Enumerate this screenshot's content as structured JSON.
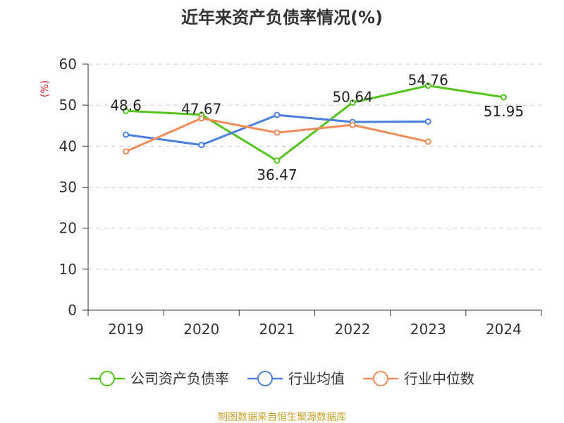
{
  "source_note": "制图数据来自恒生聚源数据库",
  "colors": {
    "source_text": "#c9a227",
    "ylabel_text": "#e0232a",
    "grid": "#cccccc",
    "axis": "#333333"
  },
  "chart_data": {
    "type": "line",
    "title": "近年来资产负债率情况(%)",
    "xlabel": "",
    "ylabel": "(%)",
    "categories": [
      "2019",
      "2020",
      "2021",
      "2022",
      "2023",
      "2024"
    ],
    "ylim": [
      0,
      60
    ],
    "yticks": [
      "0",
      "10",
      "20",
      "30",
      "40",
      "50",
      "60"
    ],
    "grid": true,
    "legend_position": "bottom",
    "series": [
      {
        "name": "公司资产负债率",
        "color": "#52c41a",
        "values": [
          48.6,
          47.67,
          36.47,
          50.64,
          54.76,
          51.95
        ],
        "labels": [
          "48.6",
          "47.67",
          "36.47",
          "50.64",
          "54.76",
          "51.95"
        ]
      },
      {
        "name": "行业均值",
        "color": "#4a7fe0",
        "values": [
          42.8,
          40.3,
          47.6,
          45.9,
          46.0,
          null
        ]
      },
      {
        "name": "行业中位数",
        "color": "#f28c5a",
        "values": [
          38.7,
          46.8,
          43.3,
          45.2,
          41.1,
          null
        ]
      }
    ]
  }
}
